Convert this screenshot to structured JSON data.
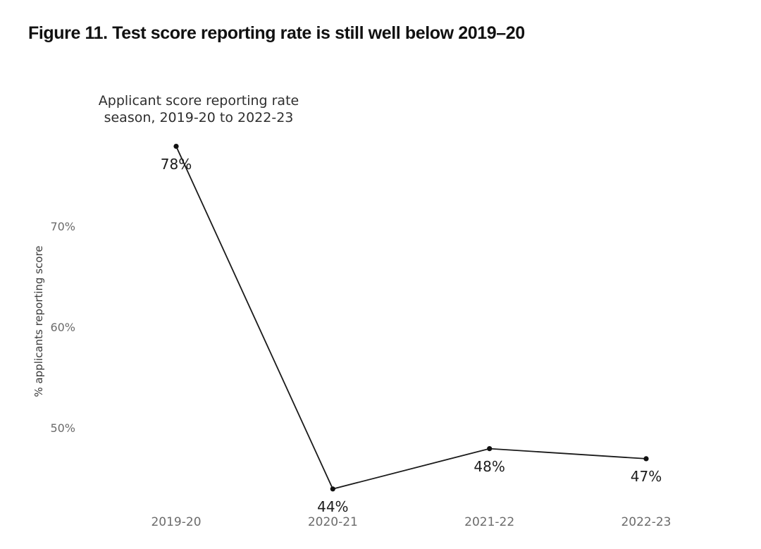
{
  "figure_title": "Figure 11. Test score reporting rate is still well below 2019–20",
  "chart_data": {
    "type": "line",
    "title": "Applicant score reporting rate\nseason, 2019-20 to 2022-23",
    "categories": [
      "2019-20",
      "2020-21",
      "2021-22",
      "2022-23"
    ],
    "series": [
      {
        "name": "% applicants reporting score",
        "values": [
          78,
          44,
          48,
          47
        ]
      }
    ],
    "point_labels": [
      "78%",
      "44%",
      "48%",
      "47%"
    ],
    "xlabel": "",
    "ylabel": "% applicants reporting score",
    "yticks": [
      {
        "value": 50,
        "label": "50%"
      },
      {
        "value": 60,
        "label": "60%"
      },
      {
        "value": 70,
        "label": "70%"
      }
    ],
    "ylim": [
      41,
      80
    ],
    "grid": false,
    "legend_position": "none",
    "colors": {
      "line": "#1a1a1a",
      "marker": "#111111",
      "point_label": "#1c1c1c",
      "tick_label": "#6b6b6b",
      "axis_title": "#3a3a3a",
      "chart_title": "#2e2e2e",
      "figure_title": "#111111",
      "background": "#ffffff"
    }
  }
}
